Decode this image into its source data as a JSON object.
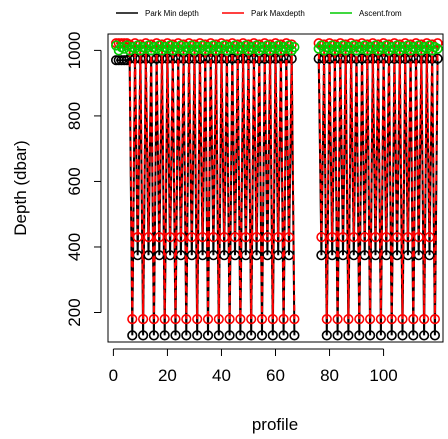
{
  "chart_data": {
    "type": "line",
    "xlabel": "profile",
    "ylabel": "Depth (dbar)",
    "xlim": [
      -2,
      122
    ],
    "ylim": [
      110,
      1050
    ],
    "x_ticks": [
      0,
      20,
      40,
      60,
      80,
      100
    ],
    "y_ticks": [
      200,
      400,
      600,
      800,
      1000
    ],
    "grid": false,
    "legend_position": "top",
    "gap_profiles": [
      67,
      76
    ],
    "series": [
      {
        "name": "Park Min depth",
        "color": "#000000",
        "pattern_low": [
          375,
          130
        ],
        "pattern_high": [
          975,
          985
        ],
        "first_profiles_value": 970
      },
      {
        "name": "Park Maxdepth",
        "color": "#ff0000",
        "pattern_low": [
          430,
          180
        ],
        "pattern_high": [
          1022,
          1018
        ]
      },
      {
        "name": "Ascent.from",
        "color": "#00cc00",
        "pattern_value": [
          1005,
          1015,
          1000,
          1010
        ]
      }
    ]
  }
}
